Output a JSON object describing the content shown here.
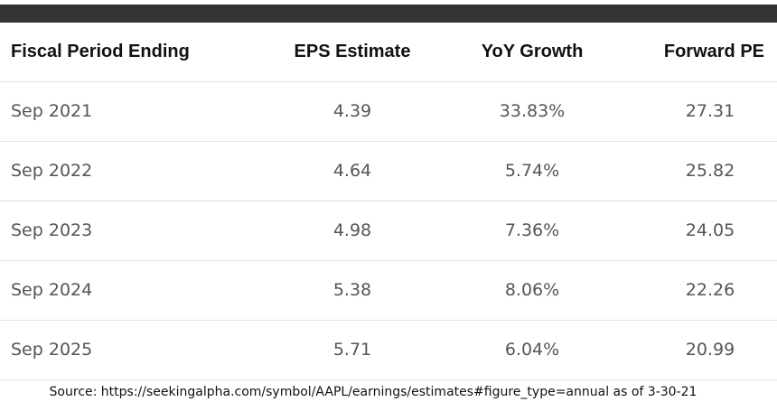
{
  "chart_data": {
    "type": "table",
    "columns": [
      "Fiscal Period Ending",
      "EPS Estimate",
      "YoY Growth",
      "Forward PE"
    ],
    "rows": [
      [
        "Sep 2021",
        "4.39",
        "33.83%",
        "27.31"
      ],
      [
        "Sep 2022",
        "4.64",
        "5.74%",
        "25.82"
      ],
      [
        "Sep 2023",
        "4.98",
        "7.36%",
        "24.05"
      ],
      [
        "Sep 2024",
        "5.38",
        "8.06%",
        "22.26"
      ],
      [
        "Sep 2025",
        "5.71",
        "6.04%",
        "20.99"
      ]
    ],
    "source": "Source: https://seekingalpha.com/symbol/AAPL/earnings/estimates#figure_type=annual as of 3-30-21"
  },
  "colors": {
    "top_bar": "#333333",
    "header_text": "#111111",
    "cell_text": "#555555",
    "row_divider": "#e3e3e3"
  }
}
